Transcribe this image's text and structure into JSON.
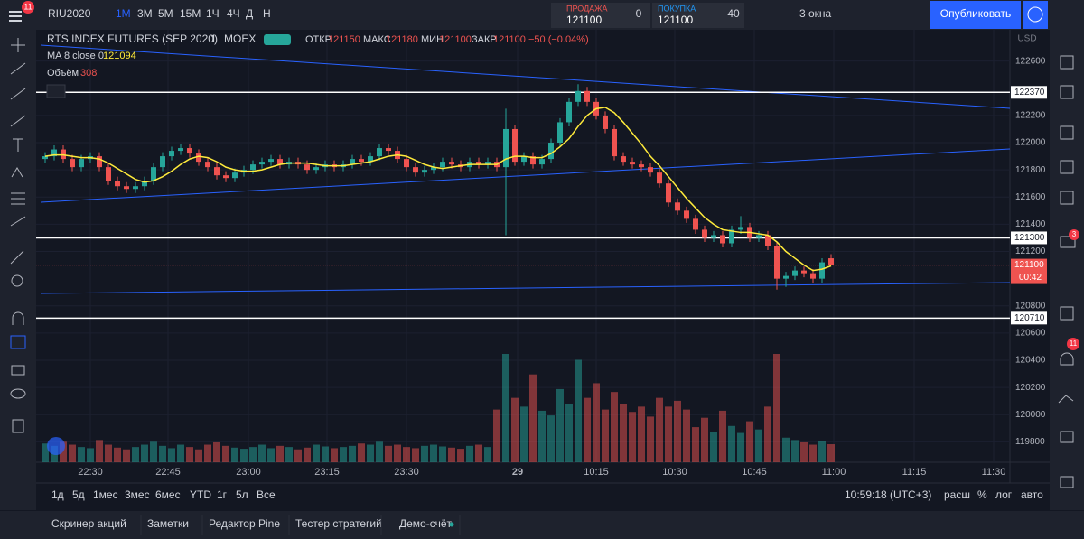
{
  "toolbar": {
    "symbol": "RIU2020",
    "intervals": [
      "1М",
      "3М",
      "5М",
      "15М",
      "1Ч",
      "4Ч",
      "Д",
      "Н"
    ],
    "sell": {
      "label": "ПРОДАЖА",
      "price": "121100"
    },
    "spread": "0",
    "buy": {
      "label": "ПОКУПКА",
      "price": "121100"
    },
    "quantity": "40",
    "layout": "3 окна",
    "publish": "Опубликовать",
    "menu_badge": "11"
  },
  "legend": {
    "name": "RTS INDEX FUTURES (SEP 2020)",
    "interval": "1",
    "exchange": "MOEX",
    "open_label": "ОТКР",
    "open": "121150",
    "high_label": "МАКС",
    "high": "121180",
    "low_label": "МИН",
    "low": "121100",
    "close_label": "ЗАКР",
    "close": "121100",
    "change": "−50 (−0.04%)",
    "ma_label": "MA 8 close 0",
    "ma_value": "121094",
    "volume_label": "Объём",
    "volume_value": "308"
  },
  "chart_data": {
    "type": "candlestick",
    "currency": "USD",
    "candles": [
      [
        121880,
        121930,
        121850,
        121900
      ],
      [
        121900,
        121980,
        121870,
        121950
      ],
      [
        121950,
        121980,
        121850,
        121880
      ],
      [
        121880,
        121910,
        121790,
        121820
      ],
      [
        121820,
        121910,
        121790,
        121880
      ],
      [
        121880,
        121930,
        121850,
        121900
      ],
      [
        121900,
        121930,
        121790,
        121820
      ],
      [
        121820,
        121850,
        121690,
        121720
      ],
      [
        121720,
        121750,
        121650,
        121680
      ],
      [
        121680,
        121710,
        121630,
        121660
      ],
      [
        121660,
        121710,
        121630,
        121680
      ],
      [
        121680,
        121750,
        121650,
        121720
      ],
      [
        121720,
        121850,
        121690,
        121820
      ],
      [
        121820,
        121930,
        121790,
        121900
      ],
      [
        121900,
        121970,
        121870,
        121940
      ],
      [
        121940,
        121990,
        121910,
        121960
      ],
      [
        121960,
        121990,
        121890,
        121920
      ],
      [
        121920,
        121950,
        121830,
        121860
      ],
      [
        121860,
        121890,
        121790,
        121820
      ],
      [
        121820,
        121850,
        121730,
        121760
      ],
      [
        121760,
        121790,
        121710,
        121740
      ],
      [
        121740,
        121810,
        121710,
        121780
      ],
      [
        121780,
        121830,
        121750,
        121800
      ],
      [
        121800,
        121870,
        121770,
        121840
      ],
      [
        121840,
        121890,
        121810,
        121860
      ],
      [
        121860,
        121910,
        121830,
        121880
      ],
      [
        121880,
        121910,
        121810,
        121840
      ],
      [
        121840,
        121890,
        121810,
        121860
      ],
      [
        121860,
        121890,
        121810,
        121840
      ],
      [
        121840,
        121870,
        121770,
        121800
      ],
      [
        121800,
        121850,
        121770,
        121820
      ],
      [
        121820,
        121870,
        121790,
        121840
      ],
      [
        121840,
        121870,
        121790,
        121820
      ],
      [
        121820,
        121870,
        121790,
        121840
      ],
      [
        121840,
        121910,
        121810,
        121880
      ],
      [
        121880,
        121910,
        121830,
        121860
      ],
      [
        121860,
        121930,
        121830,
        121900
      ],
      [
        121900,
        121990,
        121870,
        121960
      ],
      [
        121960,
        121990,
        121910,
        121940
      ],
      [
        121940,
        121970,
        121850,
        121880
      ],
      [
        121880,
        121910,
        121790,
        121820
      ],
      [
        121820,
        121850,
        121750,
        121780
      ],
      [
        121780,
        121830,
        121750,
        121800
      ],
      [
        121800,
        121850,
        121770,
        121820
      ],
      [
        121820,
        121890,
        121790,
        121860
      ],
      [
        121860,
        121890,
        121810,
        121840
      ],
      [
        121840,
        121870,
        121790,
        121820
      ],
      [
        121820,
        121890,
        121790,
        121860
      ],
      [
        121860,
        121890,
        121810,
        121840
      ],
      [
        121840,
        121890,
        121810,
        121860
      ],
      [
        121860,
        121890,
        121790,
        121820
      ],
      [
        121820,
        122250,
        121320,
        122100
      ],
      [
        122100,
        122130,
        121830,
        121860
      ],
      [
        121860,
        121930,
        121830,
        121900
      ],
      [
        121900,
        121930,
        121810,
        121840
      ],
      [
        121840,
        121910,
        121810,
        121880
      ],
      [
        121880,
        122030,
        121850,
        122000
      ],
      [
        122000,
        122180,
        121970,
        122150
      ],
      [
        122150,
        122330,
        122120,
        122300
      ],
      [
        122300,
        122430,
        122270,
        122380
      ],
      [
        122380,
        122410,
        122270,
        122300
      ],
      [
        122300,
        122330,
        122170,
        122200
      ],
      [
        122200,
        122230,
        122070,
        122100
      ],
      [
        122100,
        122130,
        121870,
        121900
      ],
      [
        121900,
        121930,
        121830,
        121860
      ],
      [
        121860,
        121890,
        121810,
        121840
      ],
      [
        121840,
        121870,
        121790,
        121820
      ],
      [
        121820,
        121850,
        121750,
        121780
      ],
      [
        121780,
        121810,
        121670,
        121700
      ],
      [
        121700,
        121730,
        121530,
        121560
      ],
      [
        121560,
        121590,
        121470,
        121500
      ],
      [
        121500,
        121530,
        121410,
        121440
      ],
      [
        121440,
        121470,
        121330,
        121360
      ],
      [
        121360,
        121390,
        121270,
        121300
      ],
      [
        121300,
        121350,
        121270,
        121320
      ],
      [
        121320,
        121350,
        121230,
        121260
      ],
      [
        121260,
        121390,
        121230,
        121360
      ],
      [
        121360,
        121460,
        121330,
        121380
      ],
      [
        121380,
        121410,
        121270,
        121300
      ],
      [
        121300,
        121350,
        121270,
        121320
      ],
      [
        121320,
        121350,
        121210,
        121240
      ],
      [
        121240,
        121270,
        120920,
        121000
      ],
      [
        121000,
        121050,
        120940,
        121020
      ],
      [
        121020,
        121090,
        120990,
        121060
      ],
      [
        121060,
        121090,
        121010,
        121040
      ],
      [
        121040,
        121070,
        120970,
        121000
      ],
      [
        121000,
        121150,
        120970,
        121120
      ],
      [
        121150,
        121180,
        121100,
        121100
      ]
    ],
    "ma": {
      "color": "#ffeb3b",
      "values": [
        121900,
        121910,
        121910,
        121900,
        121890,
        121890,
        121880,
        121850,
        121810,
        121770,
        121730,
        121710,
        121720,
        121750,
        121790,
        121840,
        121880,
        121900,
        121890,
        121860,
        121820,
        121800,
        121790,
        121790,
        121800,
        121820,
        121840,
        121850,
        121850,
        121850,
        121840,
        121830,
        121830,
        121830,
        121840,
        121850,
        121860,
        121880,
        121900,
        121910,
        121900,
        121870,
        121840,
        121820,
        121810,
        121820,
        121830,
        121840,
        121840,
        121840,
        121840,
        121880,
        121900,
        121900,
        121890,
        121890,
        121920,
        121970,
        122030,
        122120,
        122200,
        122250,
        122260,
        122220,
        122150,
        122070,
        121990,
        121900,
        121830,
        121750,
        121670,
        121590,
        121520,
        121450,
        121400,
        121360,
        121350,
        121340,
        121340,
        121330,
        121320,
        121270,
        121200,
        121150,
        121100,
        121060,
        121070,
        121094
      ]
    },
    "volume": [
      320,
      280,
      350,
      300,
      260,
      240,
      380,
      300,
      250,
      220,
      260,
      300,
      350,
      280,
      240,
      300,
      260,
      220,
      300,
      340,
      280,
      250,
      230,
      260,
      300,
      240,
      280,
      260,
      220,
      250,
      300,
      270,
      240,
      260,
      280,
      320,
      300,
      350,
      280,
      300,
      260,
      240,
      280,
      300,
      270,
      250,
      230,
      280,
      300,
      260,
      900,
      1850,
      1100,
      950,
      1500,
      880,
      800,
      1250,
      1000,
      1750,
      1100,
      1350,
      900,
      1200,
      1000,
      860,
      950,
      780,
      1100,
      950,
      1050,
      900,
      600,
      760,
      520,
      880,
      620,
      500,
      700,
      560,
      950,
      1850,
      420,
      380,
      340,
      300,
      360,
      308
    ],
    "up_color": "#26a69a",
    "down_color": "#ef5350",
    "ylim": [
      119650,
      122830
    ],
    "yticks": [
      122600,
      122200,
      122000,
      121800,
      121600,
      121400,
      121200,
      120800,
      120600,
      120400,
      120200,
      120000,
      119800
    ],
    "xticks": [
      "22:30",
      "22:45",
      "23:00",
      "23:15",
      "23:30",
      "29",
      "10:15",
      "10:30",
      "10:45",
      "11:00",
      "11:15",
      "11:30"
    ],
    "levels": [
      {
        "value": 122370,
        "label": "122370"
      },
      {
        "value": 121300,
        "label": "121300"
      },
      {
        "value": 120710,
        "label": "120710"
      }
    ],
    "last_price": {
      "value": 121100,
      "label": "121100"
    },
    "countdown": "00:42"
  },
  "bottom": {
    "ranges": [
      "1д",
      "5д",
      "1мес",
      "3мес",
      "6мес",
      "YTD",
      "1г",
      "5л",
      "Все"
    ],
    "clock": "10:59:18 (UTC+3)",
    "options": [
      "расш",
      "%",
      "лог",
      "авто"
    ]
  },
  "footer": {
    "tabs": [
      "Скринер акций",
      "Заметки",
      "Редактор Pine",
      "Тестер стратегий",
      "Демо-счёт"
    ]
  },
  "sidebar": {
    "chat_badge": "3",
    "alert_badge": "11"
  }
}
